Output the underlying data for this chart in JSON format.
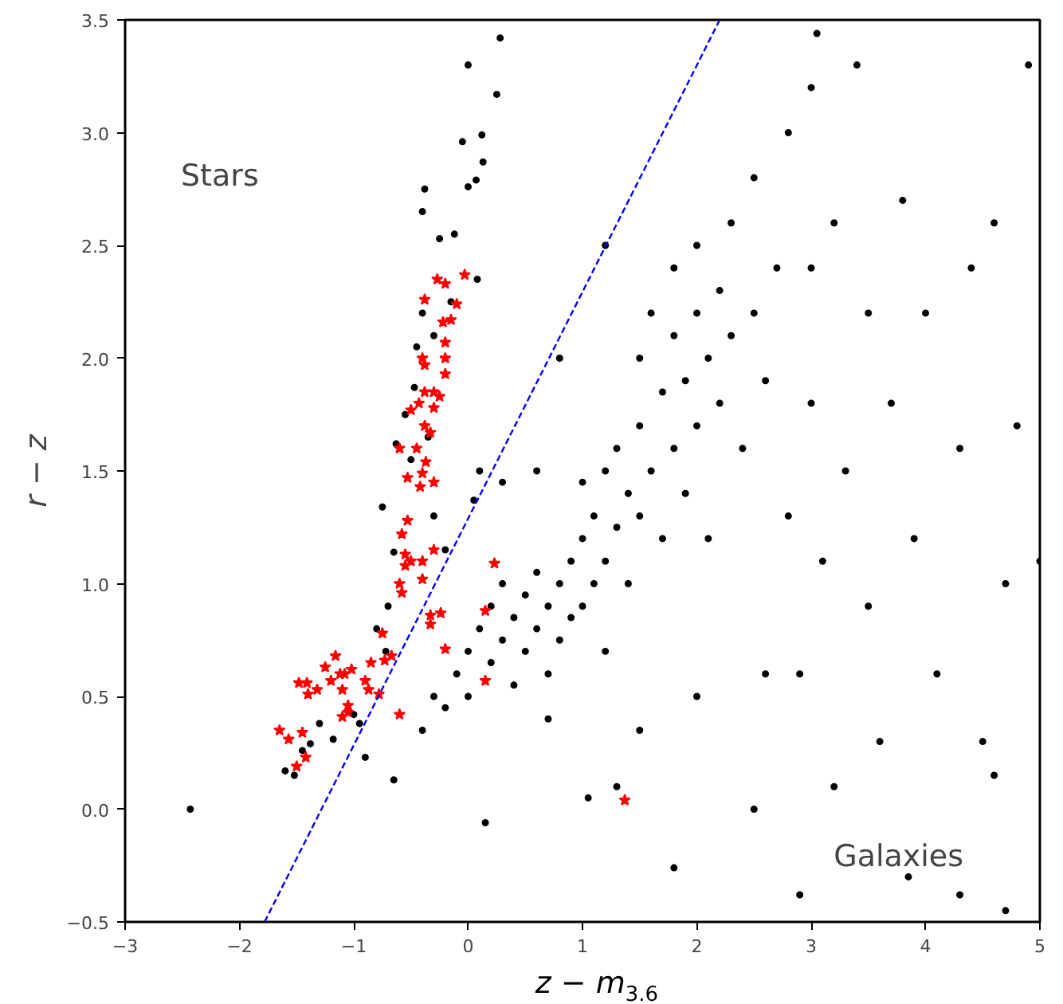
{
  "chart_data": {
    "type": "scatter",
    "xlabel": "z − m$_{3.6}$",
    "ylabel": "r − z",
    "xlim": [
      -3,
      5
    ],
    "ylim": [
      -0.5,
      3.5
    ],
    "xticks": [
      {
        "value": -3,
        "label": "−3"
      },
      {
        "value": -2,
        "label": "−2"
      },
      {
        "value": -1,
        "label": "−1"
      },
      0,
      1,
      2,
      3,
      4,
      5
    ],
    "yticks": [
      {
        "value": -0.5,
        "label": "−0.5"
      },
      {
        "value": 0,
        "label": "0.0"
      },
      {
        "value": 0.5,
        "label": "0.5"
      },
      {
        "value": 1,
        "label": "1.0"
      },
      {
        "value": 1.5,
        "label": "1.5"
      },
      {
        "value": 2,
        "label": "2.0"
      },
      {
        "value": 2.5,
        "label": "2.5"
      },
      {
        "value": 3,
        "label": "3.0"
      },
      {
        "value": 3.5,
        "label": "3.5"
      }
    ],
    "grid": false,
    "annotations": [
      "Stars",
      "Galaxies"
    ],
    "series": [
      {
        "color": "#000000",
        "marker": "circle",
        "x": [
          -2.43,
          -1.6,
          -1.52,
          -1.45,
          -1.38,
          -1.3,
          -1.18,
          -1.0,
          -0.95,
          -0.9,
          -0.8,
          -0.72,
          -0.65,
          -0.7,
          -0.65,
          -0.75,
          -0.63,
          -0.55,
          -0.5,
          -0.47,
          -0.4,
          -0.45,
          -0.35,
          -0.3,
          -0.25,
          -0.4,
          -0.38,
          -0.15,
          -0.12,
          -0.05,
          0.0,
          0.07,
          0.12,
          0.0,
          0.13,
          0.25,
          0.28,
          0.08,
          -0.3,
          -0.2,
          0.1,
          0.05,
          -0.4,
          -0.3,
          -0.2,
          -0.1,
          0.0,
          0.0,
          0.1,
          0.2,
          0.2,
          0.3,
          0.3,
          0.4,
          0.4,
          0.5,
          0.5,
          0.6,
          0.6,
          0.7,
          0.7,
          0.8,
          0.8,
          0.9,
          0.9,
          1.0,
          1.0,
          1.0,
          1.1,
          1.1,
          1.2,
          1.2,
          1.2,
          1.3,
          1.3,
          1.4,
          1.4,
          1.5,
          1.5,
          1.5,
          1.6,
          1.6,
          1.7,
          1.7,
          1.8,
          1.8,
          1.8,
          1.9,
          1.9,
          2.0,
          2.0,
          2.0,
          2.1,
          2.1,
          2.2,
          2.2,
          2.3,
          2.3,
          2.4,
          2.5,
          2.5,
          2.6,
          2.7,
          2.8,
          2.8,
          3.0,
          3.0,
          3.0,
          3.1,
          3.2,
          3.3,
          3.4,
          3.5,
          3.5,
          3.7,
          3.8,
          3.9,
          4.0,
          4.1,
          4.3,
          4.4,
          4.5,
          4.6,
          4.7,
          4.8,
          4.9,
          5.0,
          4.7,
          4.3,
          3.85,
          2.9,
          1.8,
          1.3,
          1.05,
          2.5,
          3.2,
          2.0,
          1.5,
          2.6,
          0.7,
          0.15,
          0.6,
          0.3,
          1.2,
          0.8,
          3.05,
          2.9,
          3.6,
          4.6
        ],
        "values": [
          0.0,
          0.17,
          0.15,
          0.26,
          0.29,
          0.38,
          0.31,
          0.42,
          0.38,
          0.23,
          0.8,
          0.7,
          0.13,
          0.9,
          1.14,
          1.34,
          1.62,
          1.75,
          1.55,
          1.87,
          2.2,
          2.05,
          1.65,
          2.1,
          2.53,
          2.65,
          2.75,
          2.25,
          2.55,
          2.96,
          2.76,
          2.79,
          2.99,
          3.3,
          2.87,
          3.17,
          3.42,
          2.35,
          1.3,
          1.15,
          1.5,
          1.37,
          0.35,
          0.5,
          0.45,
          0.6,
          0.5,
          0.7,
          0.8,
          0.65,
          0.9,
          0.75,
          1.0,
          0.55,
          0.85,
          0.95,
          0.7,
          0.8,
          1.05,
          0.9,
          0.6,
          1.0,
          0.75,
          1.1,
          0.85,
          1.2,
          0.9,
          1.45,
          1.0,
          1.3,
          1.1,
          1.5,
          0.7,
          1.25,
          1.6,
          1.4,
          1.0,
          1.7,
          1.3,
          2.0,
          1.5,
          2.2,
          1.85,
          1.2,
          2.1,
          1.6,
          2.4,
          1.9,
          1.4,
          2.2,
          1.7,
          2.5,
          2.0,
          1.2,
          2.3,
          1.8,
          2.6,
          2.1,
          1.6,
          2.2,
          2.8,
          1.9,
          2.4,
          3.0,
          1.3,
          2.4,
          1.8,
          3.2,
          1.1,
          2.6,
          1.5,
          3.3,
          2.2,
          0.9,
          1.8,
          2.7,
          1.2,
          2.2,
          0.6,
          1.6,
          2.4,
          0.3,
          2.6,
          1.0,
          1.7,
          3.3,
          1.1,
          -0.45,
          -0.38,
          -0.3,
          -0.38,
          -0.26,
          0.1,
          0.05,
          0.0,
          0.1,
          0.5,
          0.35,
          0.6,
          0.4,
          -0.06,
          1.5,
          1.45,
          2.5,
          2.0,
          3.44,
          0.6,
          0.3,
          0.15
        ]
      },
      {
        "color": "#ff0000",
        "marker": "star",
        "x": [
          -1.65,
          -1.57,
          -1.5,
          -1.42,
          -1.45,
          -1.48,
          -1.41,
          -1.4,
          -1.32,
          -1.25,
          -1.2,
          -1.16,
          -1.12,
          -1.08,
          -1.1,
          -1.05,
          -1.05,
          -1.1,
          -1.02,
          -0.9,
          -0.87,
          -0.85,
          -0.78,
          -0.75,
          -0.73,
          -0.67,
          -0.6,
          -0.58,
          -0.6,
          -0.55,
          -0.55,
          -0.58,
          -0.53,
          -0.5,
          -0.4,
          -0.4,
          -0.3,
          -0.33,
          -0.33,
          -0.24,
          -0.2,
          -0.6,
          -0.53,
          -0.45,
          -0.42,
          -0.4,
          -0.37,
          -0.3,
          -0.5,
          -0.43,
          -0.38,
          -0.33,
          -0.38,
          -0.3,
          -0.25,
          -0.3,
          -0.4,
          -0.38,
          -0.2,
          -0.2,
          -0.2,
          -0.22,
          -0.15,
          -0.1,
          -0.38,
          -0.27,
          -0.2,
          -0.03,
          0.23,
          0.15,
          0.15,
          1.37
        ],
        "values": [
          0.35,
          0.31,
          0.19,
          0.23,
          0.34,
          0.56,
          0.56,
          0.51,
          0.53,
          0.63,
          0.57,
          0.68,
          0.6,
          0.6,
          0.53,
          0.46,
          0.43,
          0.41,
          0.62,
          0.57,
          0.53,
          0.65,
          0.51,
          0.78,
          0.66,
          0.68,
          0.42,
          0.96,
          1.0,
          1.08,
          1.13,
          1.22,
          1.28,
          1.1,
          1.1,
          1.02,
          1.15,
          0.86,
          0.82,
          0.87,
          0.71,
          1.6,
          1.47,
          1.6,
          1.43,
          1.49,
          1.54,
          1.45,
          1.77,
          1.8,
          1.7,
          1.67,
          1.85,
          1.85,
          1.83,
          1.78,
          2.0,
          1.97,
          1.93,
          2.0,
          2.07,
          2.16,
          2.17,
          2.24,
          2.26,
          2.35,
          2.33,
          2.37,
          1.09,
          0.88,
          0.57,
          0.04
        ]
      },
      {
        "type": "line",
        "color": "#0000ff",
        "line_style": "dashed",
        "marker": "none",
        "x": [
          -1.78,
          2.2
        ],
        "values": [
          -0.5,
          3.5
        ]
      }
    ]
  }
}
